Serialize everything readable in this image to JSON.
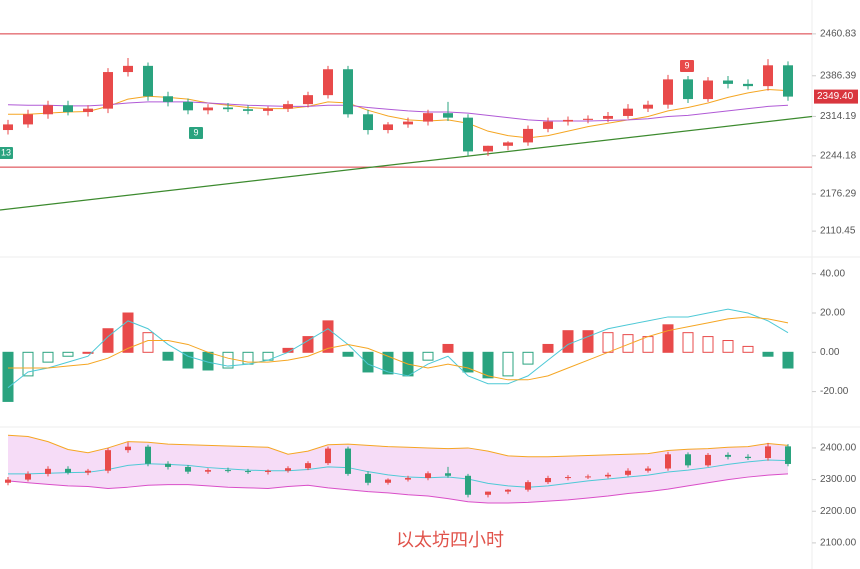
{
  "chart_data": [
    {
      "type": "candlestick",
      "caption": "以太坊四小时",
      "ylim": [
        2068,
        2521
      ],
      "yticks": [
        2460.83,
        2386.39,
        2314.19,
        2244.18,
        2176.29,
        2110.45
      ],
      "up_color": "#e84a4a",
      "down_color": "#2aa37f",
      "open": [
        2290,
        2300,
        2318,
        2334,
        2322,
        2328,
        2393,
        2404,
        2350,
        2340,
        2325,
        2330,
        2327,
        2324,
        2328,
        2336,
        2352,
        2398,
        2318,
        2290,
        2300,
        2305,
        2320,
        2312,
        2252,
        2262,
        2268,
        2292,
        2305,
        2308,
        2310,
        2315,
        2328,
        2335,
        2380,
        2345,
        2378,
        2372,
        2368,
        2405
      ],
      "high": [
        2308,
        2326,
        2342,
        2342,
        2334,
        2400,
        2418,
        2410,
        2358,
        2346,
        2336,
        2338,
        2334,
        2332,
        2342,
        2358,
        2404,
        2404,
        2326,
        2304,
        2312,
        2326,
        2340,
        2318,
        2262,
        2270,
        2298,
        2312,
        2314,
        2316,
        2322,
        2336,
        2342,
        2388,
        2386,
        2384,
        2386,
        2380,
        2416,
        2412
      ],
      "low": [
        2282,
        2294,
        2310,
        2316,
        2314,
        2320,
        2385,
        2342,
        2332,
        2318,
        2318,
        2322,
        2318,
        2316,
        2322,
        2330,
        2346,
        2312,
        2282,
        2284,
        2294,
        2298,
        2306,
        2244,
        2244,
        2254,
        2262,
        2286,
        2298,
        2302,
        2304,
        2310,
        2322,
        2328,
        2338,
        2340,
        2364,
        2362,
        2360,
        2342
      ],
      "close": [
        2300,
        2318,
        2334,
        2322,
        2328,
        2393,
        2404,
        2350,
        2340,
        2325,
        2330,
        2327,
        2324,
        2328,
        2336,
        2352,
        2398,
        2318,
        2290,
        2300,
        2305,
        2320,
        2312,
        2252,
        2262,
        2268,
        2292,
        2305,
        2308,
        2310,
        2315,
        2328,
        2335,
        2380,
        2345,
        2378,
        2372,
        2368,
        2405,
        2349.4
      ],
      "series": [
        {
          "color": "#f5a623",
          "values": [
            2318,
            2318,
            2320,
            2322,
            2323,
            2332,
            2345,
            2350,
            2348,
            2345,
            2338,
            2334,
            2330,
            2328,
            2328,
            2332,
            2340,
            2338,
            2325,
            2315,
            2308,
            2306,
            2308,
            2302,
            2288,
            2280,
            2276,
            2280,
            2288,
            2296,
            2302,
            2308,
            2314,
            2324,
            2330,
            2338,
            2348,
            2356,
            2362,
            2360
          ]
        },
        {
          "color": "#b05ad6",
          "values": [
            2335,
            2334,
            2334,
            2333,
            2333,
            2335,
            2338,
            2340,
            2340,
            2340,
            2338,
            2336,
            2334,
            2333,
            2332,
            2332,
            2334,
            2334,
            2330,
            2327,
            2324,
            2322,
            2322,
            2320,
            2316,
            2312,
            2308,
            2306,
            2306,
            2306,
            2307,
            2308,
            2310,
            2314,
            2316,
            2320,
            2324,
            2328,
            2332,
            2334
          ]
        }
      ],
      "trendline": [
        2148,
        2314
      ],
      "trendline_color": "#3c8a2e",
      "levels": [
        2460.83,
        2224
      ],
      "level_color": "#d9363e",
      "last_price": {
        "value": 2349.4,
        "label": "2349.40"
      },
      "annotations": [
        "13",
        "9",
        "9"
      ]
    },
    {
      "type": "macd",
      "ylim": [
        -37,
        48
      ],
      "yticks": [
        {
          "value": 40,
          "label": "40.00"
        },
        {
          "value": 20,
          "label": "20.00"
        },
        {
          "value": 0,
          "label": "0.00"
        },
        {
          "value": -20,
          "label": "-20.00"
        }
      ],
      "values": [
        -25,
        -12,
        -5,
        -2,
        0,
        12,
        20,
        10,
        -4,
        -8,
        -9,
        -8,
        -6,
        -4,
        2,
        8,
        16,
        -2,
        -10,
        -11,
        -12,
        -4,
        4,
        -10,
        -13,
        -12,
        -6,
        4,
        11,
        11,
        10,
        9,
        8,
        14,
        10,
        8,
        6,
        3,
        -2,
        -8
      ],
      "series": [
        {
          "color": "#4ec9d6",
          "values": [
            -18,
            -10,
            -8,
            -5,
            -2,
            8,
            16,
            12,
            4,
            -2,
            -5,
            -7,
            -6,
            -4,
            0,
            6,
            12,
            4,
            -6,
            -10,
            -12,
            -6,
            -2,
            -12,
            -16,
            -16,
            -12,
            -4,
            4,
            8,
            12,
            14,
            16,
            18,
            18,
            20,
            22,
            20,
            16,
            10
          ]
        },
        {
          "color": "#f5a623",
          "values": [
            -8,
            -8,
            -8,
            -7,
            -6,
            -3,
            2,
            6,
            6,
            4,
            0,
            -3,
            -5,
            -5,
            -4,
            -2,
            2,
            4,
            2,
            -2,
            -6,
            -8,
            -6,
            -8,
            -12,
            -14,
            -14,
            -12,
            -8,
            -4,
            0,
            4,
            8,
            11,
            13,
            15,
            17,
            18,
            17,
            15
          ]
        }
      ]
    },
    {
      "type": "bollinger",
      "ylim": [
        2027,
        2463
      ],
      "yticks": [
        {
          "value": 2400,
          "label": "2400.00"
        },
        {
          "value": 2300,
          "label": "2300.00"
        },
        {
          "value": 2200,
          "label": "2200.00"
        },
        {
          "value": 2100,
          "label": "2100.00"
        }
      ],
      "upper": [
        2440,
        2436,
        2420,
        2395,
        2385,
        2400,
        2420,
        2418,
        2412,
        2410,
        2408,
        2406,
        2404,
        2402,
        2380,
        2390,
        2410,
        2412,
        2408,
        2404,
        2402,
        2400,
        2398,
        2400,
        2390,
        2375,
        2372,
        2372,
        2374,
        2376,
        2378,
        2380,
        2382,
        2392,
        2396,
        2398,
        2402,
        2404,
        2414,
        2408
      ],
      "middle": [
        2318,
        2318,
        2320,
        2322,
        2323,
        2332,
        2345,
        2350,
        2348,
        2345,
        2338,
        2334,
        2330,
        2328,
        2328,
        2332,
        2340,
        2338,
        2325,
        2315,
        2308,
        2306,
        2308,
        2302,
        2288,
        2280,
        2276,
        2280,
        2288,
        2296,
        2302,
        2308,
        2314,
        2324,
        2330,
        2338,
        2348,
        2356,
        2362,
        2360
      ],
      "lower": [
        2296,
        2290,
        2285,
        2280,
        2278,
        2272,
        2276,
        2282,
        2284,
        2284,
        2280,
        2276,
        2274,
        2272,
        2278,
        2282,
        2274,
        2268,
        2262,
        2258,
        2252,
        2248,
        2240,
        2230,
        2226,
        2226,
        2228,
        2232,
        2236,
        2242,
        2248,
        2256,
        2262,
        2270,
        2280,
        2290,
        2300,
        2308,
        2314,
        2318
      ],
      "upper_color": "#f5a623",
      "middle_color": "#4ec9d6",
      "lower_color": "#d94fc8",
      "fill_color": "#f6dcf7"
    }
  ]
}
